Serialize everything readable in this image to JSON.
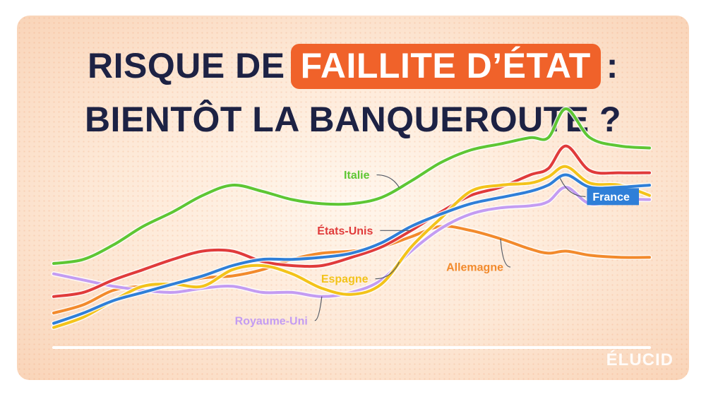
{
  "headline": {
    "before": "RISQUE DE",
    "highlight": "FAILLITE D’ÉTAT",
    "after": ":",
    "line2": "BIENTÔT LA BANQUEROUTE ?"
  },
  "brand": {
    "logo_text": "ÉLUCID"
  },
  "colors": {
    "accent": "#f0622a",
    "title": "#1d2244",
    "baseline": "#ffffff"
  },
  "chart_data": {
    "type": "line",
    "x": [
      0,
      5,
      10,
      15,
      20,
      25,
      30,
      35,
      40,
      45,
      50,
      55,
      60,
      65,
      70,
      75,
      80,
      83,
      86,
      90,
      95,
      100
    ],
    "ylim": [
      0,
      100
    ],
    "xlabel": "",
    "ylabel": "",
    "grid": false,
    "legend": "inline labels",
    "series": [
      {
        "name": "Italie",
        "color": "#5ec634",
        "label_at": 58,
        "values": [
          38,
          40,
          47,
          56,
          63,
          71,
          76,
          73,
          69,
          67,
          67,
          70,
          78,
          87,
          93,
          96,
          99,
          99,
          113,
          99,
          95,
          94
        ]
      },
      {
        "name": "États-Unis",
        "color": "#e03b3b",
        "label_at": 60,
        "values": [
          22,
          24,
          30,
          35,
          40,
          44,
          44,
          39,
          37,
          37,
          41,
          46,
          54,
          63,
          71,
          75,
          81,
          84,
          95,
          83,
          82,
          82
        ]
      },
      {
        "name": "France",
        "color": "#2f7fd8",
        "label_at": 85,
        "values": [
          9,
          14,
          20,
          24,
          28,
          32,
          37,
          40,
          40,
          41,
          43,
          48,
          56,
          62,
          67,
          70,
          73,
          76,
          81,
          75,
          75,
          76
        ]
      },
      {
        "name": "Allemagne",
        "color": "#f28a2c",
        "label_at": 75,
        "values": [
          14,
          18,
          25,
          27,
          28,
          31,
          32,
          35,
          40,
          43,
          44,
          46,
          51,
          56,
          54,
          50,
          45,
          43,
          44,
          42,
          41,
          41
        ]
      },
      {
        "name": "Royaume-Uni",
        "color": "#c39cf2",
        "label_at": 45,
        "values": [
          33,
          30,
          27,
          25,
          24,
          26,
          27,
          24,
          24,
          22,
          24,
          30,
          44,
          55,
          62,
          65,
          66,
          68,
          75,
          67,
          69,
          69
        ]
      },
      {
        "name": "Espagne",
        "color": "#f3c31a",
        "label_at": 58,
        "values": [
          7,
          12,
          20,
          27,
          28,
          27,
          35,
          37,
          33,
          26,
          23,
          28,
          46,
          60,
          73,
          76,
          77,
          80,
          85,
          77,
          76,
          71
        ]
      }
    ]
  }
}
